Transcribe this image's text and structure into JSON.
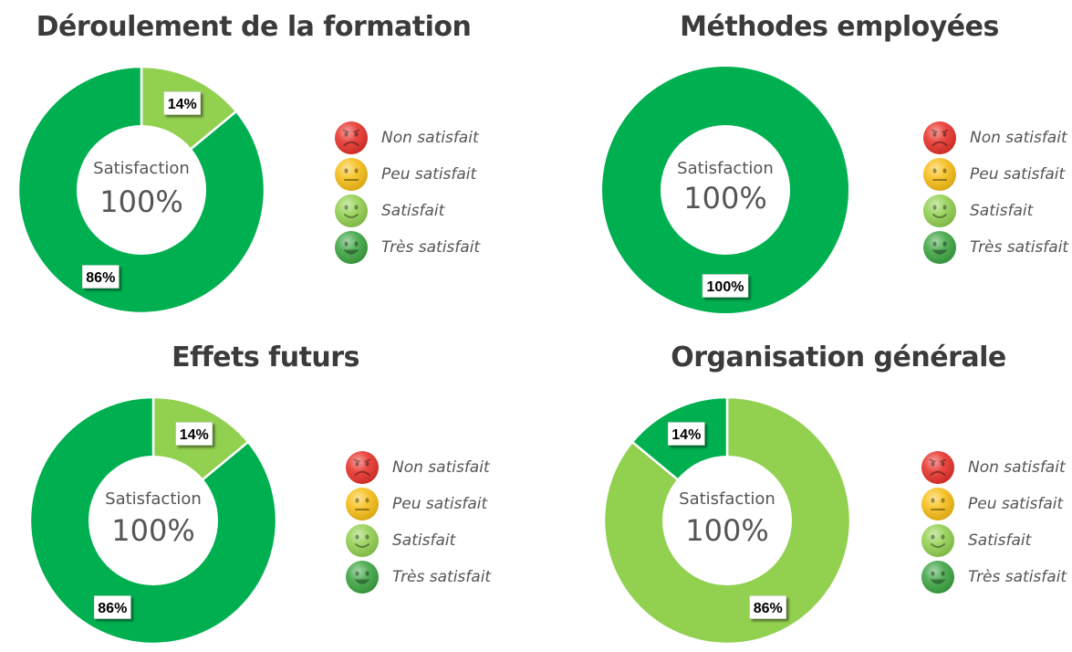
{
  "colors": {
    "non_satisfait": "#e8322b",
    "peu_satisfait": "#f7be16",
    "satisfait": "#92d050",
    "tres_satisfait": "#00b050",
    "title_text": "#3b3b3b",
    "body_text": "#555555"
  },
  "legend": [
    {
      "label": "Non satisfait",
      "icon": "sad-face-icon",
      "color": "#e8322b"
    },
    {
      "label": "Peu satisfait",
      "icon": "neutral-face-icon",
      "color": "#f7be16"
    },
    {
      "label": "Satisfait",
      "icon": "smile-face-icon",
      "color": "#92d050"
    },
    {
      "label": "Très satisfait",
      "icon": "big-smile-face-icon",
      "color": "#3ea543"
    }
  ],
  "chart_data": [
    {
      "type": "pie",
      "variant": "donut",
      "title": "Déroulement de la formation",
      "center_label": "Satisfaction",
      "center_value": "100%",
      "categories": [
        "Non satisfait",
        "Peu satisfait",
        "Satisfait",
        "Très satisfait"
      ],
      "values": [
        0,
        0,
        14,
        86
      ],
      "data_labels": [
        "",
        "",
        "14%",
        "86%"
      ]
    },
    {
      "type": "pie",
      "variant": "donut",
      "title": "Méthodes employées",
      "center_label": "Satisfaction",
      "center_value": "100%",
      "categories": [
        "Non satisfait",
        "Peu satisfait",
        "Satisfait",
        "Très satisfait"
      ],
      "values": [
        0,
        0,
        0,
        100
      ],
      "data_labels": [
        "",
        "",
        "",
        "100%"
      ]
    },
    {
      "type": "pie",
      "variant": "donut",
      "title": "Effets futurs",
      "center_label": "Satisfaction",
      "center_value": "100%",
      "categories": [
        "Non satisfait",
        "Peu satisfait",
        "Satisfait",
        "Très satisfait"
      ],
      "values": [
        0,
        0,
        14,
        86
      ],
      "data_labels": [
        "",
        "",
        "14%",
        "86%"
      ]
    },
    {
      "type": "pie",
      "variant": "donut",
      "title": "Organisation générale",
      "center_label": "Satisfaction",
      "center_value": "100%",
      "categories": [
        "Non satisfait",
        "Peu satisfait",
        "Satisfait",
        "Très satisfait"
      ],
      "values": [
        0,
        0,
        86,
        14
      ],
      "data_labels": [
        "",
        "",
        "86%",
        "14%"
      ]
    }
  ]
}
